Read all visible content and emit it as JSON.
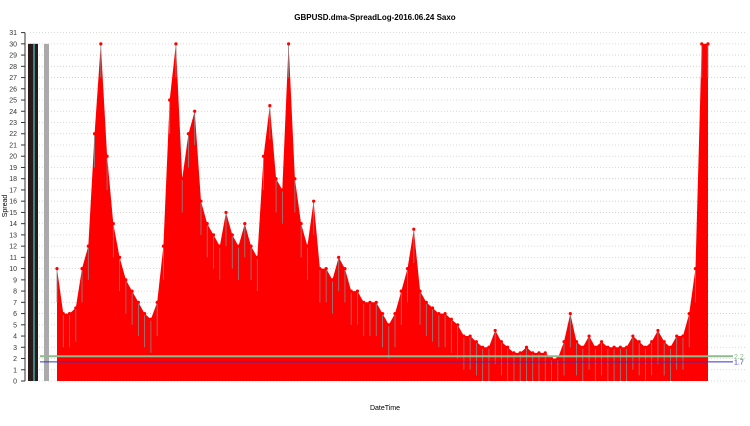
{
  "chart_data": {
    "type": "area",
    "title": "GBPUSD.dma-SpreadLog-2016.06.24 Saxo",
    "xlabel": "DateTime",
    "ylabel": "Spread",
    "ylim": [
      0,
      31
    ],
    "yticks": [
      0,
      1,
      2,
      3,
      4,
      5,
      6,
      7,
      8,
      9,
      10,
      11,
      12,
      13,
      14,
      15,
      16,
      17,
      18,
      19,
      20,
      21,
      22,
      23,
      24,
      25,
      26,
      27,
      28,
      29,
      30,
      31
    ],
    "grid": true,
    "series": [
      {
        "color": "#ff0000",
        "values": [
          10,
          6,
          6,
          6.5,
          10,
          12,
          22,
          30,
          20,
          14,
          11,
          9,
          8,
          7,
          6,
          5.5,
          7,
          12,
          25,
          30,
          18,
          22,
          24,
          16,
          14,
          13,
          12,
          15,
          13,
          12,
          14,
          12,
          11,
          20,
          24.5,
          18,
          17,
          30,
          18,
          14,
          12,
          16,
          10,
          10,
          9,
          11,
          10,
          8,
          8,
          7,
          7,
          7,
          6,
          5,
          6,
          8,
          10,
          13.5,
          8,
          7,
          6.5,
          6,
          6,
          5.5,
          5,
          4,
          4,
          3.5,
          3,
          3,
          4.5,
          3.5,
          3,
          2.5,
          2.5,
          3,
          2.5,
          2.5,
          2.5,
          2,
          2,
          3.5,
          6,
          3.5,
          3,
          4,
          3,
          3.5,
          3,
          3,
          3,
          3,
          4,
          3.5,
          3,
          3.5,
          4.5,
          3.5,
          3,
          4,
          4,
          6,
          10,
          30,
          30
        ]
      }
    ],
    "reference_lines": [
      {
        "value": 2.2,
        "label": "2.2",
        "color": "#8fbc8f"
      },
      {
        "value": 1.7,
        "label": "1.7",
        "color": "#3333cc"
      }
    ]
  }
}
